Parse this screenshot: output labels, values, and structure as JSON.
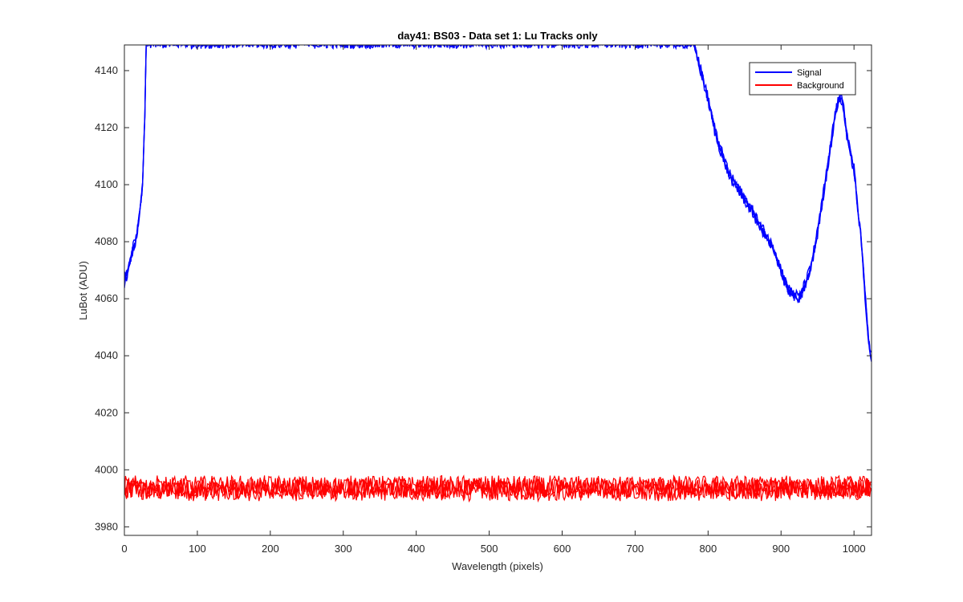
{
  "chart_data": {
    "type": "line",
    "title": "day41: BS03 - Data set 1: Lu Tracks only",
    "xlabel": "Wavelength (pixels)",
    "ylabel": "LuBot (ADU)",
    "xlim": [
      0,
      1024
    ],
    "ylim": [
      3977,
      4149
    ],
    "xticks": [
      0,
      100,
      200,
      300,
      400,
      500,
      600,
      700,
      800,
      900,
      1000
    ],
    "yticks": [
      3980,
      4000,
      4020,
      4040,
      4060,
      4080,
      4100,
      4120,
      4140
    ],
    "grid": false,
    "legend_location": "top-right",
    "series": [
      {
        "name": "Signal",
        "color": "#0000ff",
        "points": [
          [
            0,
            4066
          ],
          [
            5,
            4070
          ],
          [
            10,
            4076
          ],
          [
            15,
            4080
          ],
          [
            20,
            4088
          ],
          [
            25,
            4100
          ],
          [
            28,
            4125
          ],
          [
            30,
            4150
          ],
          [
            780,
            4150
          ],
          [
            790,
            4140
          ],
          [
            800,
            4130
          ],
          [
            810,
            4118
          ],
          [
            820,
            4110
          ],
          [
            830,
            4103
          ],
          [
            840,
            4099
          ],
          [
            850,
            4095
          ],
          [
            860,
            4091
          ],
          [
            870,
            4086
          ],
          [
            880,
            4082
          ],
          [
            890,
            4077
          ],
          [
            900,
            4070
          ],
          [
            910,
            4063
          ],
          [
            920,
            4061
          ],
          [
            925,
            4060
          ],
          [
            930,
            4063
          ],
          [
            940,
            4070
          ],
          [
            950,
            4083
          ],
          [
            960,
            4100
          ],
          [
            970,
            4117
          ],
          [
            975,
            4126
          ],
          [
            980,
            4131
          ],
          [
            985,
            4128
          ],
          [
            990,
            4118
          ],
          [
            1000,
            4105
          ],
          [
            1010,
            4080
          ],
          [
            1015,
            4062
          ],
          [
            1020,
            4045
          ],
          [
            1024,
            4039
          ]
        ]
      },
      {
        "name": "Background",
        "color": "#ff0000",
        "mean": 3993.5,
        "range": [
          3989,
          3998
        ],
        "x_range": [
          0,
          1024
        ]
      }
    ]
  }
}
